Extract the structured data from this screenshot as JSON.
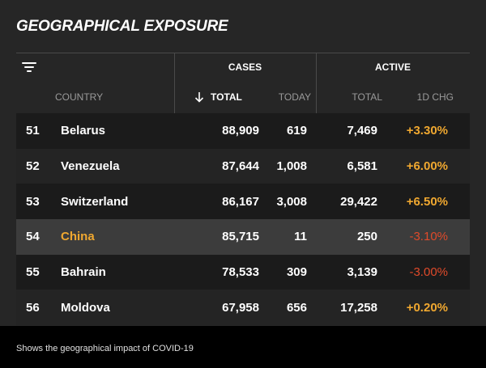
{
  "title": "GEOGRAPHICAL EXPOSURE",
  "groups": {
    "cases": "CASES",
    "active": "ACTIVE"
  },
  "columns": {
    "country": "COUNTRY",
    "total": "TOTAL",
    "today": "TODAY",
    "active_total": "TOTAL",
    "chg": "1D CHG"
  },
  "rows": [
    {
      "rank": "51",
      "country": "Belarus",
      "total": "88,909",
      "today": "619",
      "active": "7,469",
      "chg": "+3.30%"
    },
    {
      "rank": "52",
      "country": "Venezuela",
      "total": "87,644",
      "today": "1,008",
      "active": "6,581",
      "chg": "+6.00%"
    },
    {
      "rank": "53",
      "country": "Switzerland",
      "total": "86,167",
      "today": "3,008",
      "active": "29,422",
      "chg": "+6.50%"
    },
    {
      "rank": "54",
      "country": "China",
      "total": "85,715",
      "today": "11",
      "active": "250",
      "chg": "-3.10%"
    },
    {
      "rank": "55",
      "country": "Bahrain",
      "total": "78,533",
      "today": "309",
      "active": "3,139",
      "chg": "-3.00%"
    },
    {
      "rank": "56",
      "country": "Moldova",
      "total": "67,958",
      "today": "656",
      "active": "17,258",
      "chg": "+0.20%"
    }
  ],
  "highlighted_country": "China",
  "footer": "Shows the geographical impact of COVID-19",
  "colors": {
    "positive": "#f0a830",
    "negative": "#e04a2a",
    "highlight_row": "#3c3c3c"
  },
  "icons": {
    "filter": "filter-icon",
    "sort": "arrow-down-icon"
  }
}
